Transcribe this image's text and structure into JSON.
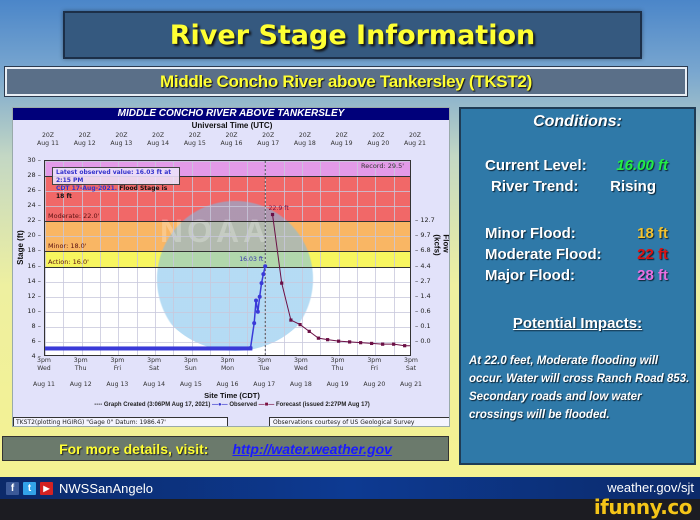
{
  "header": {
    "title": "River Stage Information",
    "subtitle": "Middle Concho River above Tankersley (TKST2)"
  },
  "hydrograph": {
    "header": "MIDDLE CONCHO RIVER ABOVE TANKERSLEY",
    "top_axis_title": "Universal Time (UTC)",
    "top_ticks": [
      {
        "time": "20Z",
        "date": "Aug 11"
      },
      {
        "time": "20Z",
        "date": "Aug 12"
      },
      {
        "time": "20Z",
        "date": "Aug 13"
      },
      {
        "time": "20Z",
        "date": "Aug 14"
      },
      {
        "time": "20Z",
        "date": "Aug 15"
      },
      {
        "time": "20Z",
        "date": "Aug 16"
      },
      {
        "time": "20Z",
        "date": "Aug 17"
      },
      {
        "time": "20Z",
        "date": "Aug 18"
      },
      {
        "time": "20Z",
        "date": "Aug 19"
      },
      {
        "time": "20Z",
        "date": "Aug 20"
      },
      {
        "time": "20Z",
        "date": "Aug 21"
      }
    ],
    "latest_box": {
      "line1": "Latest observed value: 16.03 ft at 2:15 PM",
      "line2": "CDT 17-Aug-2021.",
      "flood_stage": "Flood Stage is 18 ft"
    },
    "record_label": "Record: 29.5'",
    "thresholds": {
      "moderate": "Moderate: 22.0'",
      "minor": "Minor: 18.0'",
      "action": "Action: 16.0'"
    },
    "peak_label": "22.9 ft",
    "observed_label": "16.03 ft",
    "watermark": "NOAA",
    "y_label": "Stage (ft)",
    "y2_label": "Flow (kcfs)",
    "bottom_ticks": [
      {
        "time": "3pm",
        "day": "Wed",
        "date": "Aug 11"
      },
      {
        "time": "3pm",
        "day": "Thu",
        "date": "Aug 12"
      },
      {
        "time": "3pm",
        "day": "Fri",
        "date": "Aug 13"
      },
      {
        "time": "3pm",
        "day": "Sat",
        "date": "Aug 14"
      },
      {
        "time": "3pm",
        "day": "Sun",
        "date": "Aug 15"
      },
      {
        "time": "3pm",
        "day": "Mon",
        "date": "Aug 16"
      },
      {
        "time": "3pm",
        "day": "Tue",
        "date": "Aug 17"
      },
      {
        "time": "3pm",
        "day": "Wed",
        "date": "Aug 18"
      },
      {
        "time": "3pm",
        "day": "Thu",
        "date": "Aug 19"
      },
      {
        "time": "3pm",
        "day": "Fri",
        "date": "Aug 20"
      },
      {
        "time": "3pm",
        "day": "Sat",
        "date": "Aug 21"
      }
    ],
    "x_label": "Site Time (CDT)",
    "legend": {
      "created": "---- Graph Created (3:06PM Aug 17, 2021)",
      "observed": "Observed",
      "forecast": "Forecast (issued 2:27PM Aug 17)"
    },
    "footer_left": "TKST2(plotting HGIRG) \"Gage 0\" Datum: 1986.47'",
    "footer_right": "Observations courtesy of US Geological Survey"
  },
  "details": {
    "text": "For more details, visit:",
    "link": "http://water.weather.gov"
  },
  "conditions": {
    "title": "Conditions:",
    "current_level_label": "Current Level:",
    "current_level_value": "16.00 ft",
    "trend_label": "River Trend:",
    "trend_value": "Rising",
    "minor_label": "Minor Flood:",
    "minor_value": "18 ft",
    "moderate_label": "Moderate Flood:",
    "moderate_value": "22 ft",
    "major_label": "Major Flood:",
    "major_value": "28 ft",
    "impacts_title": "Potential Impacts:",
    "impacts_text": "At 22.0 feet, Moderate flooding will occur. Water will cross Ranch Road 853. Secondary roads and low water crossings will be flooded."
  },
  "social": {
    "handle": "NWSSanAngelo",
    "url": "weather.gov/sjt"
  },
  "watermark_brand": "ifunny.co",
  "colors": {
    "major": "#e39ae8",
    "moderate": "#f16868",
    "minor": "#f9b664",
    "action": "#f7f55f",
    "observed": "#3a3ad8",
    "forecast": "#6b0f45"
  },
  "chart_data": {
    "type": "line",
    "title": "MIDDLE CONCHO RIVER ABOVE TANKERSLEY",
    "xlabel": "Site Time (CDT)",
    "ylabel": "Stage (ft)",
    "y2label": "Flow (kcfs)",
    "ylim": [
      4,
      30
    ],
    "yticks": [
      4,
      6,
      8,
      10,
      12,
      14,
      16,
      18,
      20,
      22,
      24,
      26,
      28,
      30
    ],
    "y2ticks": [
      {
        "stage": 22,
        "flow": 12.7
      },
      {
        "stage": 20,
        "flow": 9.7
      },
      {
        "stage": 18,
        "flow": 6.8
      },
      {
        "stage": 16,
        "flow": 4.4
      },
      {
        "stage": 14,
        "flow": 2.7
      },
      {
        "stage": 12,
        "flow": 1.4
      },
      {
        "stage": 10,
        "flow": 0.6
      },
      {
        "stage": 8,
        "flow": 0.1
      },
      {
        "stage": 6,
        "flow": 0.0
      }
    ],
    "categories": [
      "Aug 11",
      "Aug 12",
      "Aug 13",
      "Aug 14",
      "Aug 15",
      "Aug 16",
      "Aug 17",
      "Aug 18",
      "Aug 19",
      "Aug 20",
      "Aug 21"
    ],
    "thresholds": {
      "record": 29.5,
      "major": 28,
      "moderate": 22.0,
      "minor": 18.0,
      "action": 16.0
    },
    "series": [
      {
        "name": "Observed",
        "x": [
          0,
          1,
          2,
          3,
          4,
          5,
          5.6,
          5.7,
          5.75,
          5.8,
          5.85,
          5.9,
          5.95,
          6.0
        ],
        "values": [
          5.0,
          5.0,
          5.0,
          5.0,
          5.0,
          5.0,
          5.2,
          8.5,
          11.5,
          10.0,
          12.0,
          13.8,
          15.0,
          16.03
        ]
      },
      {
        "name": "Forecast",
        "x": [
          6.2,
          6.45,
          6.7,
          6.95,
          7.2,
          7.45,
          7.7,
          8.0,
          8.3,
          8.6,
          8.9,
          9.2,
          9.5,
          9.8,
          10.0
        ],
        "values": [
          22.9,
          13.8,
          8.9,
          8.3,
          7.4,
          6.5,
          6.3,
          6.1,
          6.0,
          5.9,
          5.8,
          5.7,
          5.7,
          5.5,
          5.5
        ]
      }
    ],
    "annotations": [
      "Latest observed value: 16.03 ft at 2:15 PM CDT 17-Aug-2021. Flood Stage is 18 ft",
      "22.9 ft",
      "16.03 ft",
      "Record: 29.5'"
    ],
    "legend_position": "bottom",
    "grid": true
  }
}
